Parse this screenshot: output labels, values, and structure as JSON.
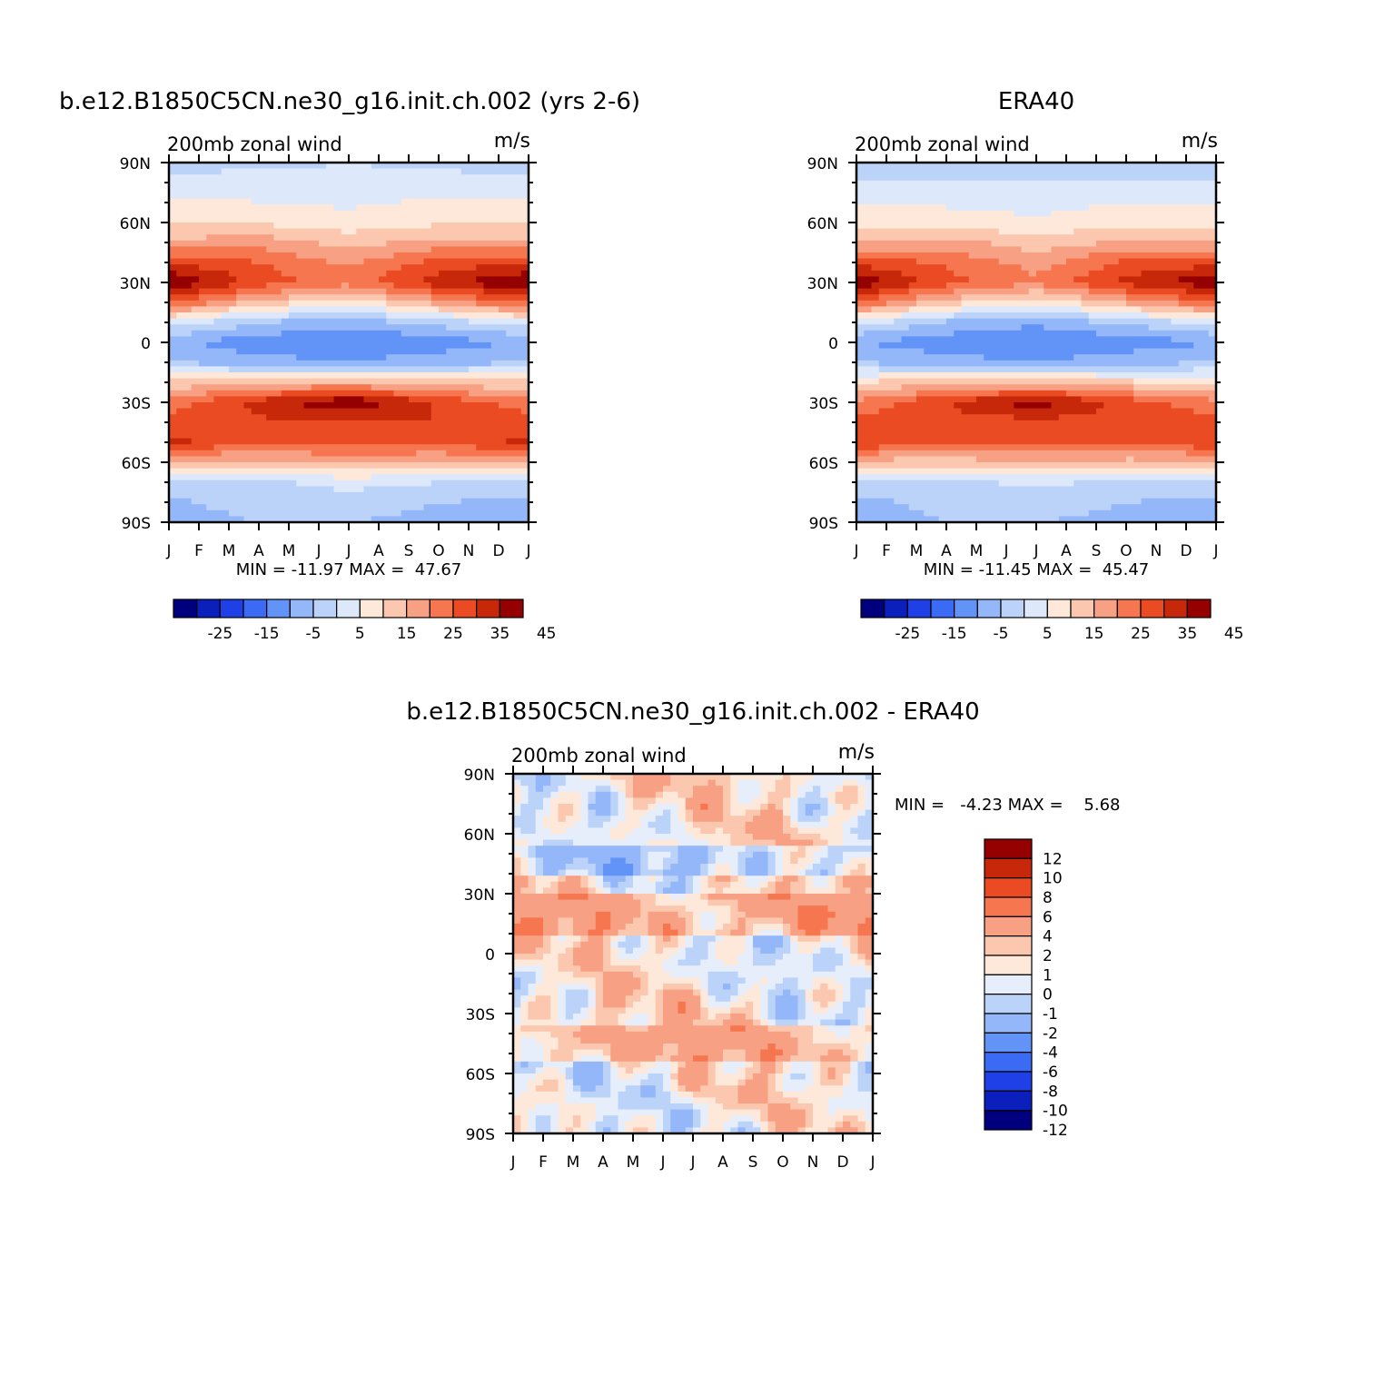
{
  "colors": {
    "full": [
      "#00007f",
      "#0a1fbb",
      "#1f40e6",
      "#3b6bf5",
      "#6293f7",
      "#93b7f8",
      "#bcd3f9",
      "#dde9fb",
      "#fde8d9",
      "#fbc7ae",
      "#f8a083",
      "#f5764f",
      "#ea4b22",
      "#c7280a",
      "#950000"
    ],
    "diff": [
      "#00007f",
      "#0a1fbb",
      "#1f40e6",
      "#3b6bf5",
      "#6293f7",
      "#93b7f8",
      "#bcd3f9",
      "#e6eefb",
      "#fde8d9",
      "#fbc7ae",
      "#f8a083",
      "#f5764f",
      "#ea4b22",
      "#c7280a",
      "#950000"
    ]
  },
  "chart_data": [
    {
      "type": "heatmap",
      "title": "b.e12.B1850C5CN.ne30_g16.init.ch.002 (yrs 2-6)",
      "left_string": "200mb zonal wind",
      "right_string": "m/s",
      "x_tick_labels": [
        "J",
        "F",
        "M",
        "A",
        "M",
        "J",
        "J",
        "A",
        "S",
        "O",
        "N",
        "D",
        "J"
      ],
      "y_tick_labels": [
        "90N",
        "60N",
        "30N",
        "0",
        "30S",
        "60S",
        "90S"
      ],
      "y_range": [
        -90,
        90
      ],
      "x_range": [
        0,
        12
      ],
      "stats": "MIN = -11.97 MAX =  47.67",
      "colorbar": {
        "orientation": "horizontal",
        "levels": [
          -30,
          -25,
          -20,
          -15,
          -10,
          -5,
          0,
          5,
          10,
          15,
          20,
          25,
          30,
          35,
          40,
          45
        ],
        "labels": [
          "-25",
          "-15",
          "-5",
          "5",
          "15",
          "25",
          "35",
          "45"
        ]
      },
      "field": {
        "month": [
          0,
          3,
          6,
          9,
          12
        ],
        "latitude": [
          90,
          80,
          70,
          60,
          50,
          40,
          30,
          20,
          10,
          0,
          -10,
          -20,
          -30,
          -40,
          -50,
          -60,
          -70,
          -80,
          -90
        ],
        "values": [
          [
            [
              1,
              4,
              5,
              4,
              1
            ],
            [
              7,
              8,
              6,
              7,
              7
            ],
            [
              11,
              10,
              9,
              11,
              11
            ],
            [
              15,
              14,
              12,
              14,
              15
            ],
            [
              21,
              23,
              18,
              22,
              21
            ],
            [
              34,
              30,
              24,
              32,
              34
            ],
            [
              46,
              33,
              27,
              38,
              46
            ],
            [
              31,
              18,
              12,
              22,
              31
            ],
            [
              8,
              0,
              -3,
              2,
              8
            ],
            [
              -4,
              -8,
              -10,
              -8,
              -4
            ],
            [
              0,
              -3,
              -5,
              -2,
              0
            ],
            [
              16,
              19,
              20,
              17,
              16
            ],
            [
              27,
              37,
              45,
              34,
              27
            ],
            [
              33,
              34,
              34,
              35,
              33
            ],
            [
              36,
              32,
              31,
              32,
              36
            ],
            [
              18,
              18,
              21,
              19,
              18
            ],
            [
              3,
              4,
              7,
              5,
              3
            ],
            [
              -1,
              2,
              2,
              0,
              -1
            ],
            [
              -2,
              0,
              0,
              -1,
              -2
            ]
          ],
          [
            [
              1,
              2,
              3,
              2,
              1
            ],
            [
              5,
              6,
              5,
              6,
              5
            ],
            [
              10,
              9,
              8,
              10,
              10
            ],
            [
              14,
              13,
              11,
              13,
              14
            ],
            [
              20,
              22,
              17,
              21,
              20
            ],
            [
              33,
              29,
              23,
              31,
              33
            ],
            [
              44,
              32,
              26,
              37,
              44
            ],
            [
              30,
              17,
              11,
              21,
              30
            ],
            [
              7,
              -1,
              -4,
              1,
              7
            ],
            [
              -5,
              -8,
              -10,
              -8,
              -5
            ],
            [
              0,
              -3,
              -5,
              -2,
              0
            ],
            [
              15,
              18,
              19,
              16,
              15
            ],
            [
              26,
              35,
              43,
              33,
              26
            ],
            [
              32,
              33,
              33,
              34,
              32
            ],
            [
              35,
              31,
              30,
              31,
              35
            ],
            [
              18,
              17,
              20,
              18,
              18
            ],
            [
              3,
              4,
              6,
              4,
              3
            ],
            [
              -1,
              1,
              2,
              0,
              -1
            ],
            [
              -2,
              0,
              0,
              -1,
              -2
            ]
          ]
        ]
      }
    },
    {
      "type": "heatmap",
      "title": "ERA40",
      "left_string": "200mb zonal wind",
      "right_string": "m/s",
      "x_tick_labels": [
        "J",
        "F",
        "M",
        "A",
        "M",
        "J",
        "J",
        "A",
        "S",
        "O",
        "N",
        "D",
        "J"
      ],
      "y_tick_labels": [
        "90N",
        "60N",
        "30N",
        "0",
        "30S",
        "60S",
        "90S"
      ],
      "y_range": [
        -90,
        90
      ],
      "x_range": [
        0,
        12
      ],
      "stats": "MIN = -11.45 MAX =  45.47",
      "colorbar": {
        "orientation": "horizontal",
        "levels": [
          -30,
          -25,
          -20,
          -15,
          -10,
          -5,
          0,
          5,
          10,
          15,
          20,
          25,
          30,
          35,
          40,
          45
        ],
        "labels": [
          "-25",
          "-15",
          "-5",
          "5",
          "15",
          "25",
          "35",
          "45"
        ]
      }
    },
    {
      "type": "heatmap",
      "title": "b.e12.B1850C5CN.ne30_g16.init.ch.002 - ERA40",
      "left_string": "200mb zonal wind",
      "right_string": "m/s",
      "x_tick_labels": [
        "J",
        "F",
        "M",
        "A",
        "M",
        "J",
        "J",
        "A",
        "S",
        "O",
        "N",
        "D",
        "J"
      ],
      "y_tick_labels": [
        "90N",
        "60N",
        "30N",
        "0",
        "30S",
        "60S",
        "90S"
      ],
      "y_range": [
        -90,
        90
      ],
      "x_range": [
        0,
        12
      ],
      "stats": "MIN =   -4.23 MAX =    5.68",
      "colorbar": {
        "orientation": "vertical",
        "levels": [
          -14,
          -12,
          -10,
          -8,
          -6,
          -4,
          -2,
          -1,
          0,
          1,
          2,
          4,
          6,
          8,
          10,
          12,
          14
        ],
        "labels": [
          "12",
          "10",
          "8",
          "6",
          "4",
          "2",
          "1",
          "0",
          "-1",
          "-2",
          "-4",
          "-6",
          "-8",
          "-10",
          "-12"
        ]
      }
    }
  ]
}
